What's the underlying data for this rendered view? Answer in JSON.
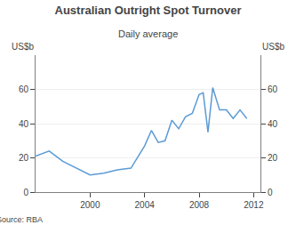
{
  "chart_data": {
    "type": "line",
    "title": "Australian Outright Spot Turnover",
    "subtitle": "Daily average",
    "ylabel": "US$b",
    "y2label": "US$b",
    "source": "Source: RBA",
    "color": "#5b9bd5",
    "x": [
      1996,
      1997,
      1998,
      1999,
      2000,
      2001,
      2002,
      2003,
      2004,
      2004.5,
      2005,
      2005.5,
      2006,
      2006.5,
      2007,
      2007.5,
      2008,
      2008.3,
      2008.65,
      2009,
      2009.5,
      2010,
      2010.5,
      2011,
      2011.5
    ],
    "values": [
      21,
      24,
      18,
      14,
      10,
      11,
      13,
      14,
      27,
      36,
      29,
      30,
      42,
      37,
      44,
      46,
      57,
      58,
      35,
      61,
      48,
      48,
      43,
      48,
      43
    ],
    "xlim": [
      1996,
      2012.5
    ],
    "xticks": [
      2000,
      2004,
      2008,
      2012
    ],
    "ylim": [
      0,
      80
    ],
    "yticks": [
      0,
      20,
      40,
      60
    ],
    "y2lim": [
      0,
      80
    ],
    "y2ticks": [
      0,
      20,
      40,
      60
    ],
    "grid": "y"
  }
}
